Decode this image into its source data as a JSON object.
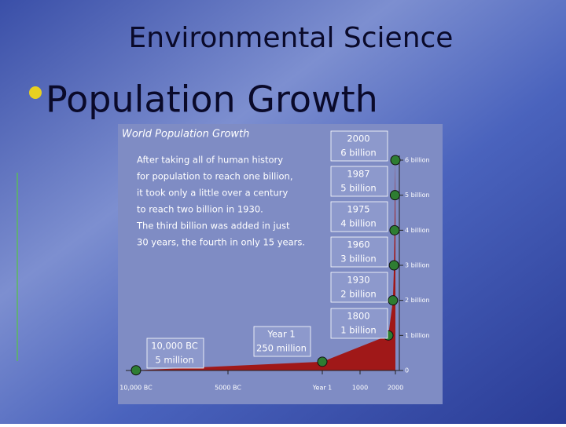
{
  "slide": {
    "title": "Environmental Science",
    "bullet": "Population Growth"
  },
  "chart_data": {
    "type": "area",
    "title": "World Population Growth",
    "note": [
      "After taking all of human history",
      "for population to reach one billion,",
      "it took only a little over a century",
      "to reach two billion in 1930.",
      "The third billion was added in just",
      "30 years, the fourth in only 15 years."
    ],
    "x": [
      -10000,
      1,
      1800,
      1930,
      1960,
      1975,
      1987,
      2000
    ],
    "x_labels": [
      "10,000 BC",
      "Year 1",
      "1800",
      "1930",
      "1960",
      "1975",
      "1987",
      "2000"
    ],
    "values": [
      0.005,
      0.25,
      1,
      2,
      3,
      4,
      5,
      6
    ],
    "value_labels": [
      "5 million",
      "250 million",
      "1 billion",
      "2 billion",
      "3 billion",
      "4 billion",
      "5 billion",
      "6 billion"
    ],
    "color": "#a01818",
    "marker_color": "#2e7d32",
    "xlim": [
      -10000,
      2000
    ],
    "xticks": [
      {
        "value": -10000,
        "label": "10,000 BC"
      },
      {
        "value": -5000,
        "label": "5000 BC"
      },
      {
        "value": 1,
        "label": "Year 1"
      },
      1000,
      2000
    ],
    "ylim": [
      0,
      6
    ],
    "yticks": [
      0,
      {
        "value": 1,
        "label": "1 billion"
      },
      {
        "value": 2,
        "label": "2 billion"
      },
      {
        "value": 3,
        "label": "3 billion"
      },
      {
        "value": 4,
        "label": "4 billion"
      },
      {
        "value": 5,
        "label": "5 billion"
      },
      {
        "value": 6,
        "label": "6 billion"
      }
    ]
  }
}
